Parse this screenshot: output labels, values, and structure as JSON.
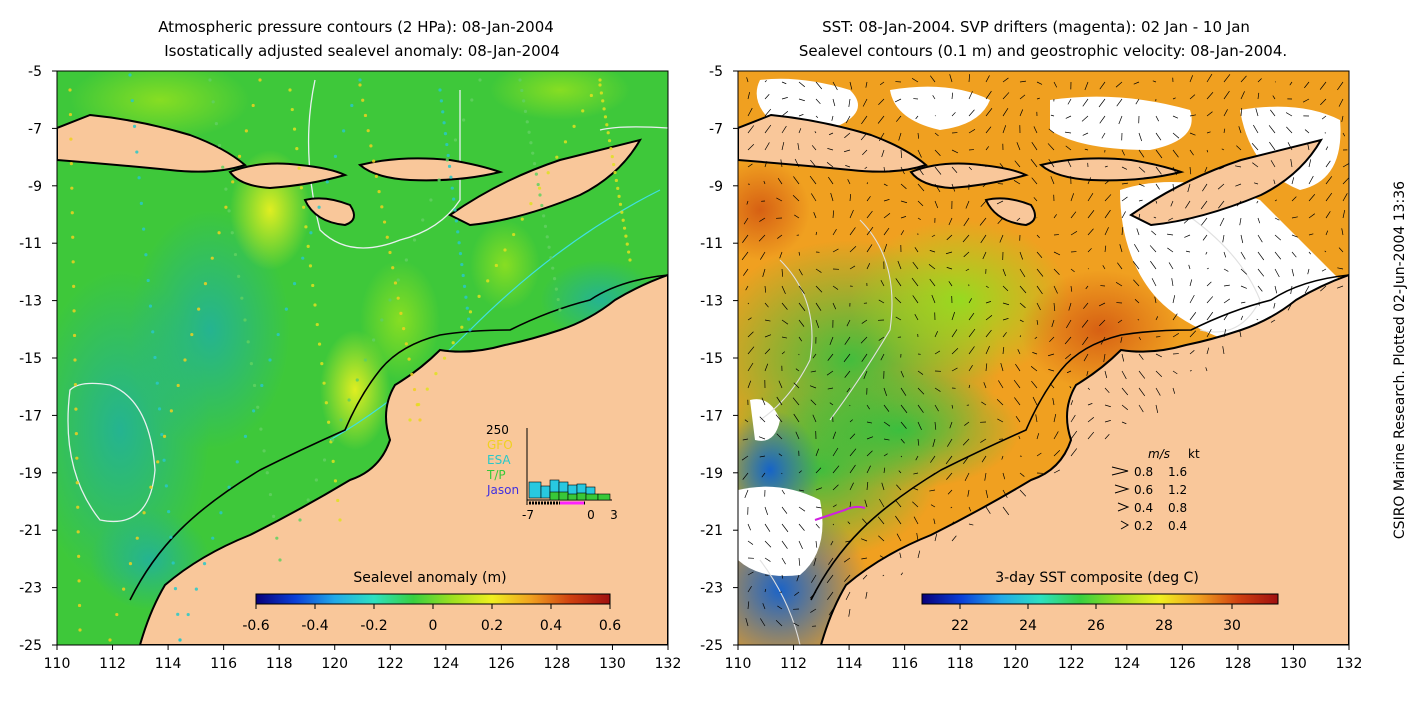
{
  "left_panel": {
    "title_line1": "Atmospheric pressure contours (2 HPa): 08-Jan-2004",
    "title_line2": "Isostatically adjusted sealevel anomaly: 08-Jan-2004",
    "colorbar": {
      "label": "Sealevel anomaly (m)",
      "ticks": [
        "-0.6",
        "-0.4",
        "-0.2",
        "0",
        "0.2",
        "0.4",
        "0.6"
      ],
      "colors": [
        "#08007a",
        "#0b3fd8",
        "#22a9e8",
        "#2ee0c0",
        "#38d040",
        "#9ee020",
        "#f0f020",
        "#f0a020",
        "#d04010",
        "#a01010"
      ]
    },
    "inset": {
      "y_max_label": "250",
      "x_labels": [
        "-7",
        "0",
        "3"
      ],
      "legend": [
        {
          "name": "GFO",
          "color": "#f0d020"
        },
        {
          "name": "ESA",
          "color": "#28c8c8"
        },
        {
          "name": "T/P",
          "color": "#38c838"
        },
        {
          "name": "Jason",
          "color": "#4030e0"
        }
      ]
    }
  },
  "right_panel": {
    "title_line1": "SST: 08-Jan-2004. SVP drifters (magenta): 02 Jan - 10 Jan",
    "title_line2": "Sealevel contours (0.1 m) and geostrophic velocity: 08-Jan-2004.",
    "colorbar": {
      "label": "3-day SST composite (deg C)",
      "ticks": [
        "22",
        "24",
        "26",
        "28",
        "30"
      ],
      "colors": [
        "#08007a",
        "#0b3fd8",
        "#22a9e8",
        "#2ee0c0",
        "#38d040",
        "#9ee020",
        "#f0f020",
        "#f0a020",
        "#d04010",
        "#a01010"
      ]
    },
    "velocity_legend": {
      "header_ms": "m/s",
      "header_kt": "kt",
      "rows": [
        {
          "ms": "0.8",
          "kt": "1.6"
        },
        {
          "ms": "0.6",
          "kt": "1.2"
        },
        {
          "ms": "0.4",
          "kt": "0.8"
        },
        {
          "ms": "0.2",
          "kt": "0.4"
        }
      ]
    }
  },
  "axes": {
    "x_ticks": [
      "110",
      "112",
      "114",
      "116",
      "118",
      "120",
      "122",
      "124",
      "126",
      "128",
      "130",
      "132"
    ],
    "y_ticks": [
      "-5",
      "-7",
      "-9",
      "-11",
      "-13",
      "-15",
      "-17",
      "-19",
      "-21",
      "-23",
      "-25"
    ]
  },
  "credit": "CSIRO Marine Research. Plotted 02-Jun-2004 13:36",
  "colors": {
    "land": "#f9c79a",
    "sea_anomaly_base": "#3ec83a",
    "sst_base": "#f0a020"
  }
}
